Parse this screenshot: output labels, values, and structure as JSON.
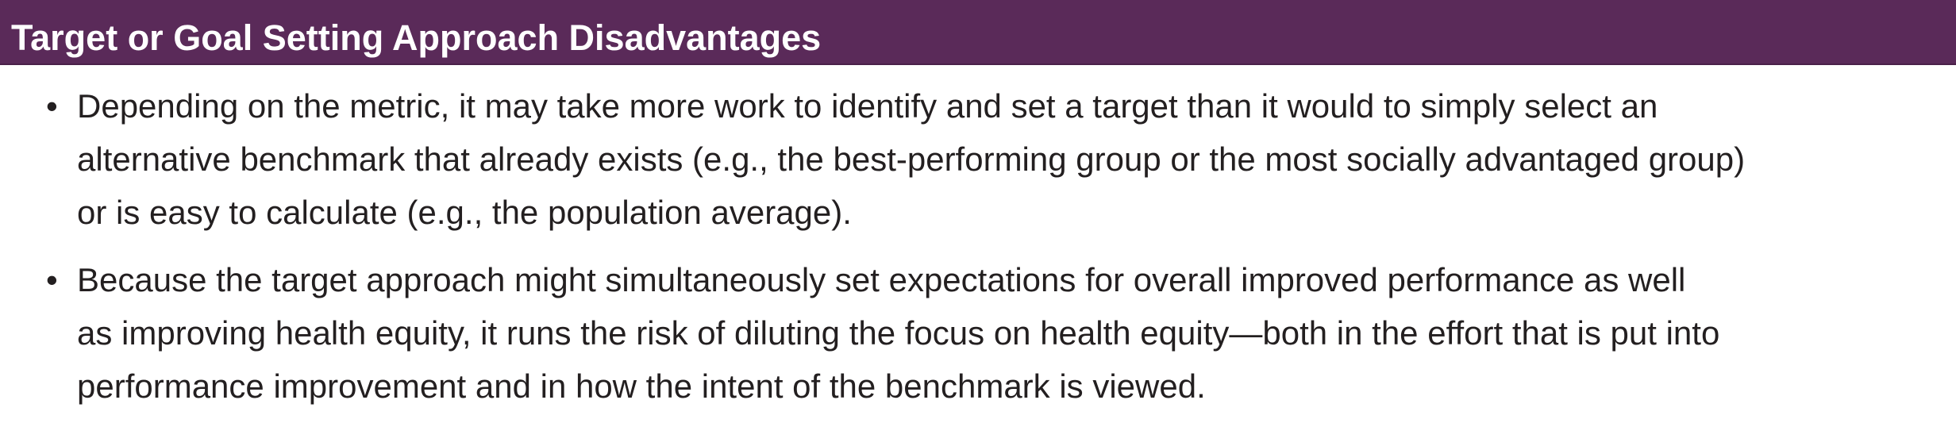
{
  "header": {
    "title": "Target or Goal Setting Approach Disadvantages"
  },
  "bullets": [
    {
      "lines": [
        "Depending on the metric, it may take more work to identify and set a target than it would to simply select an",
        "alternative benchmark that already exists (e.g., the best-performing group or the most socially advantaged group)",
        "or is easy to calculate (e.g., the population average)."
      ]
    },
    {
      "lines": [
        "Because the target approach might simultaneously set expectations for overall improved performance as well",
        "as improving health equity, it runs the risk of diluting the focus on health equity—both in the effort that is put into",
        "performance improvement and in how the intent of the benchmark is viewed."
      ]
    }
  ],
  "colors": {
    "header_background": "#5a2a59",
    "header_text": "#ffffff",
    "body_text": "#231f20"
  }
}
